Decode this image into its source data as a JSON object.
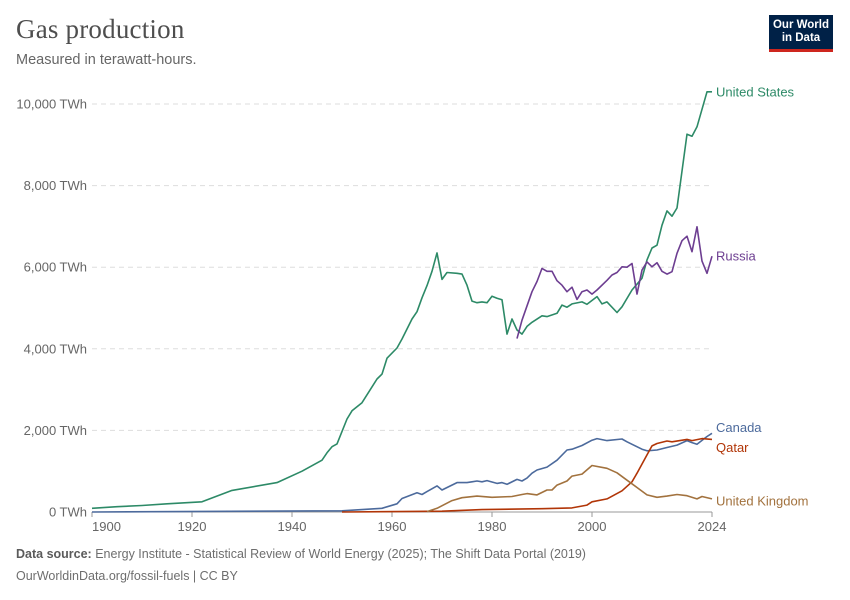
{
  "header": {
    "title": "Gas production",
    "subtitle": "Measured in terawatt-hours.",
    "logo_line1": "Our World",
    "logo_line2": "in Data"
  },
  "footer": {
    "source_label": "Data source:",
    "source_text": "Energy Institute - Statistical Review of World Energy (2025); The Shift Data Portal (2019)",
    "url_text": "OurWorldinData.org/fossil-fuels | CC BY"
  },
  "colors": {
    "logo_bg": "#002147",
    "logo_accent": "#ce261e"
  },
  "chart_data": {
    "type": "line",
    "title": "Gas production",
    "subtitle": "Measured in terawatt-hours.",
    "xlim": [
      1900,
      2024
    ],
    "ylim": [
      0,
      10400
    ],
    "x_ticks": [
      1900,
      1920,
      1940,
      1960,
      1980,
      2000,
      2024
    ],
    "y_ticks": [
      0,
      2000,
      4000,
      6000,
      8000,
      10000
    ],
    "y_tick_labels": [
      "0 TWh",
      "2,000 TWh",
      "4,000 TWh",
      "6,000 TWh",
      "8,000 TWh",
      "10,000 TWh"
    ],
    "grid": "horizontal dashed",
    "legend": "inline labels at line ends (right)",
    "series": [
      {
        "name": "United States",
        "color": "#2d8a67",
        "points": [
          [
            1900,
            90
          ],
          [
            1905,
            130
          ],
          [
            1910,
            160
          ],
          [
            1915,
            200
          ],
          [
            1922,
            250
          ],
          [
            1928,
            530
          ],
          [
            1937,
            720
          ],
          [
            1942,
            1000
          ],
          [
            1946,
            1270
          ],
          [
            1947,
            1450
          ],
          [
            1948,
            1600
          ],
          [
            1949,
            1670
          ],
          [
            1951,
            2280
          ],
          [
            1952,
            2480
          ],
          [
            1954,
            2680
          ],
          [
            1957,
            3260
          ],
          [
            1958,
            3380
          ],
          [
            1959,
            3770
          ],
          [
            1961,
            4020
          ],
          [
            1962,
            4240
          ],
          [
            1964,
            4730
          ],
          [
            1965,
            4910
          ],
          [
            1966,
            5250
          ],
          [
            1967,
            5550
          ],
          [
            1968,
            5900
          ],
          [
            1969,
            6350
          ],
          [
            1970,
            5700
          ],
          [
            1971,
            5870
          ],
          [
            1973,
            5850
          ],
          [
            1974,
            5830
          ],
          [
            1975,
            5560
          ],
          [
            1976,
            5170
          ],
          [
            1977,
            5130
          ],
          [
            1978,
            5150
          ],
          [
            1979,
            5130
          ],
          [
            1980,
            5290
          ],
          [
            1981,
            5240
          ],
          [
            1982,
            5200
          ],
          [
            1983,
            4360
          ],
          [
            1984,
            4730
          ],
          [
            1985,
            4460
          ],
          [
            1986,
            4360
          ],
          [
            1987,
            4550
          ],
          [
            1988,
            4650
          ],
          [
            1990,
            4810
          ],
          [
            1991,
            4790
          ],
          [
            1993,
            4870
          ],
          [
            1994,
            5070
          ],
          [
            1995,
            5020
          ],
          [
            1996,
            5100
          ],
          [
            1998,
            5150
          ],
          [
            1999,
            5090
          ],
          [
            2001,
            5280
          ],
          [
            2002,
            5100
          ],
          [
            2003,
            5150
          ],
          [
            2005,
            4890
          ],
          [
            2006,
            5030
          ],
          [
            2008,
            5440
          ],
          [
            2010,
            5730
          ],
          [
            2011,
            6180
          ],
          [
            2012,
            6470
          ],
          [
            2013,
            6540
          ],
          [
            2014,
            7030
          ],
          [
            2015,
            7380
          ],
          [
            2016,
            7250
          ],
          [
            2017,
            7450
          ],
          [
            2019,
            9260
          ],
          [
            2020,
            9210
          ],
          [
            2021,
            9440
          ],
          [
            2023,
            10300
          ],
          [
            2024,
            10300
          ]
        ]
      },
      {
        "name": "Russia",
        "color": "#6d3e91",
        "points": [
          [
            1985,
            4250
          ],
          [
            1986,
            4700
          ],
          [
            1988,
            5400
          ],
          [
            1989,
            5650
          ],
          [
            1990,
            5970
          ],
          [
            1991,
            5900
          ],
          [
            1992,
            5900
          ],
          [
            1993,
            5670
          ],
          [
            1994,
            5560
          ],
          [
            1995,
            5400
          ],
          [
            1996,
            5510
          ],
          [
            1997,
            5210
          ],
          [
            1998,
            5400
          ],
          [
            1999,
            5440
          ],
          [
            2000,
            5340
          ],
          [
            2001,
            5440
          ],
          [
            2003,
            5680
          ],
          [
            2004,
            5810
          ],
          [
            2005,
            5870
          ],
          [
            2006,
            6010
          ],
          [
            2007,
            6000
          ],
          [
            2008,
            6090
          ],
          [
            2009,
            5340
          ],
          [
            2010,
            5930
          ],
          [
            2011,
            6130
          ],
          [
            2012,
            6010
          ],
          [
            2013,
            6110
          ],
          [
            2014,
            5900
          ],
          [
            2015,
            5830
          ],
          [
            2016,
            5890
          ],
          [
            2017,
            6340
          ],
          [
            2018,
            6650
          ],
          [
            2019,
            6760
          ],
          [
            2020,
            6380
          ],
          [
            2021,
            6990
          ],
          [
            2022,
            6150
          ],
          [
            2023,
            5850
          ],
          [
            2024,
            6270
          ]
        ]
      },
      {
        "name": "Canada",
        "color": "#4c6a9c",
        "points": [
          [
            1900,
            0
          ],
          [
            1950,
            30
          ],
          [
            1958,
            90
          ],
          [
            1961,
            200
          ],
          [
            1962,
            330
          ],
          [
            1965,
            470
          ],
          [
            1966,
            430
          ],
          [
            1967,
            500
          ],
          [
            1969,
            640
          ],
          [
            1970,
            540
          ],
          [
            1973,
            720
          ],
          [
            1975,
            720
          ],
          [
            1976,
            740
          ],
          [
            1977,
            760
          ],
          [
            1978,
            740
          ],
          [
            1979,
            770
          ],
          [
            1981,
            700
          ],
          [
            1982,
            720
          ],
          [
            1983,
            680
          ],
          [
            1985,
            800
          ],
          [
            1986,
            760
          ],
          [
            1987,
            830
          ],
          [
            1988,
            950
          ],
          [
            1989,
            1030
          ],
          [
            1991,
            1100
          ],
          [
            1993,
            1270
          ],
          [
            1995,
            1520
          ],
          [
            1996,
            1540
          ],
          [
            1998,
            1630
          ],
          [
            2000,
            1760
          ],
          [
            2001,
            1800
          ],
          [
            2003,
            1750
          ],
          [
            2006,
            1790
          ],
          [
            2007,
            1720
          ],
          [
            2010,
            1540
          ],
          [
            2011,
            1500
          ],
          [
            2013,
            1520
          ],
          [
            2015,
            1580
          ],
          [
            2017,
            1640
          ],
          [
            2019,
            1750
          ],
          [
            2020,
            1700
          ],
          [
            2021,
            1660
          ],
          [
            2023,
            1850
          ],
          [
            2024,
            1930
          ]
        ]
      },
      {
        "name": "Qatar",
        "color": "#b13507",
        "points": [
          [
            1950,
            0
          ],
          [
            1970,
            20
          ],
          [
            1978,
            60
          ],
          [
            1990,
            80
          ],
          [
            1996,
            100
          ],
          [
            1999,
            170
          ],
          [
            2000,
            250
          ],
          [
            2003,
            320
          ],
          [
            2006,
            520
          ],
          [
            2008,
            740
          ],
          [
            2009,
            950
          ],
          [
            2011,
            1400
          ],
          [
            2012,
            1620
          ],
          [
            2013,
            1680
          ],
          [
            2015,
            1740
          ],
          [
            2016,
            1720
          ],
          [
            2019,
            1780
          ],
          [
            2020,
            1750
          ],
          [
            2022,
            1800
          ],
          [
            2024,
            1780
          ]
        ]
      },
      {
        "name": "United Kingdom",
        "color": "#a2723e",
        "points": [
          [
            1967,
            10
          ],
          [
            1969,
            90
          ],
          [
            1972,
            280
          ],
          [
            1974,
            350
          ],
          [
            1977,
            390
          ],
          [
            1980,
            360
          ],
          [
            1984,
            380
          ],
          [
            1986,
            430
          ],
          [
            1987,
            450
          ],
          [
            1989,
            420
          ],
          [
            1991,
            540
          ],
          [
            1992,
            540
          ],
          [
            1993,
            660
          ],
          [
            1995,
            760
          ],
          [
            1996,
            880
          ],
          [
            1998,
            930
          ],
          [
            2000,
            1140
          ],
          [
            2003,
            1070
          ],
          [
            2005,
            960
          ],
          [
            2007,
            780
          ],
          [
            2009,
            600
          ],
          [
            2011,
            420
          ],
          [
            2013,
            360
          ],
          [
            2015,
            390
          ],
          [
            2017,
            430
          ],
          [
            2019,
            400
          ],
          [
            2021,
            320
          ],
          [
            2022,
            380
          ],
          [
            2024,
            320
          ]
        ]
      }
    ]
  }
}
